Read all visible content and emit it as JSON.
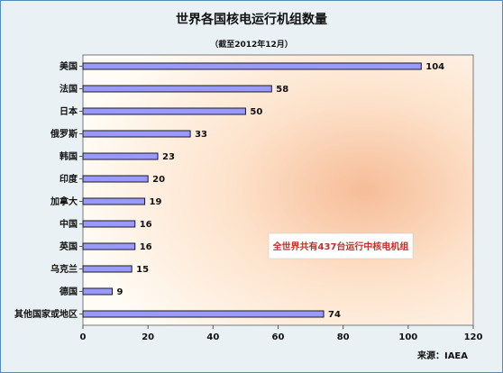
{
  "chart_data": {
    "type": "bar",
    "orientation": "horizontal",
    "title": "世界各国核电运行机组数量",
    "subtitle": "（截至2012年12月）",
    "categories": [
      "美国",
      "法国",
      "日本",
      "俄罗斯",
      "韩国",
      "印度",
      "加拿大",
      "中国",
      "英国",
      "乌克兰",
      "德国",
      "其他国家或地区"
    ],
    "values": [
      104,
      58,
      50,
      33,
      23,
      20,
      19,
      16,
      16,
      15,
      9,
      74
    ],
    "xlim": [
      0,
      120
    ],
    "xticks": [
      0,
      20,
      40,
      60,
      80,
      100,
      120
    ],
    "grid": false,
    "annotation": "全世界共有437台运行中核电机组",
    "source": "来源：IAEA",
    "colors": {
      "bar": "#9999ff",
      "bar_border": "#1a1a1a",
      "note_text": "#c0302a"
    }
  }
}
